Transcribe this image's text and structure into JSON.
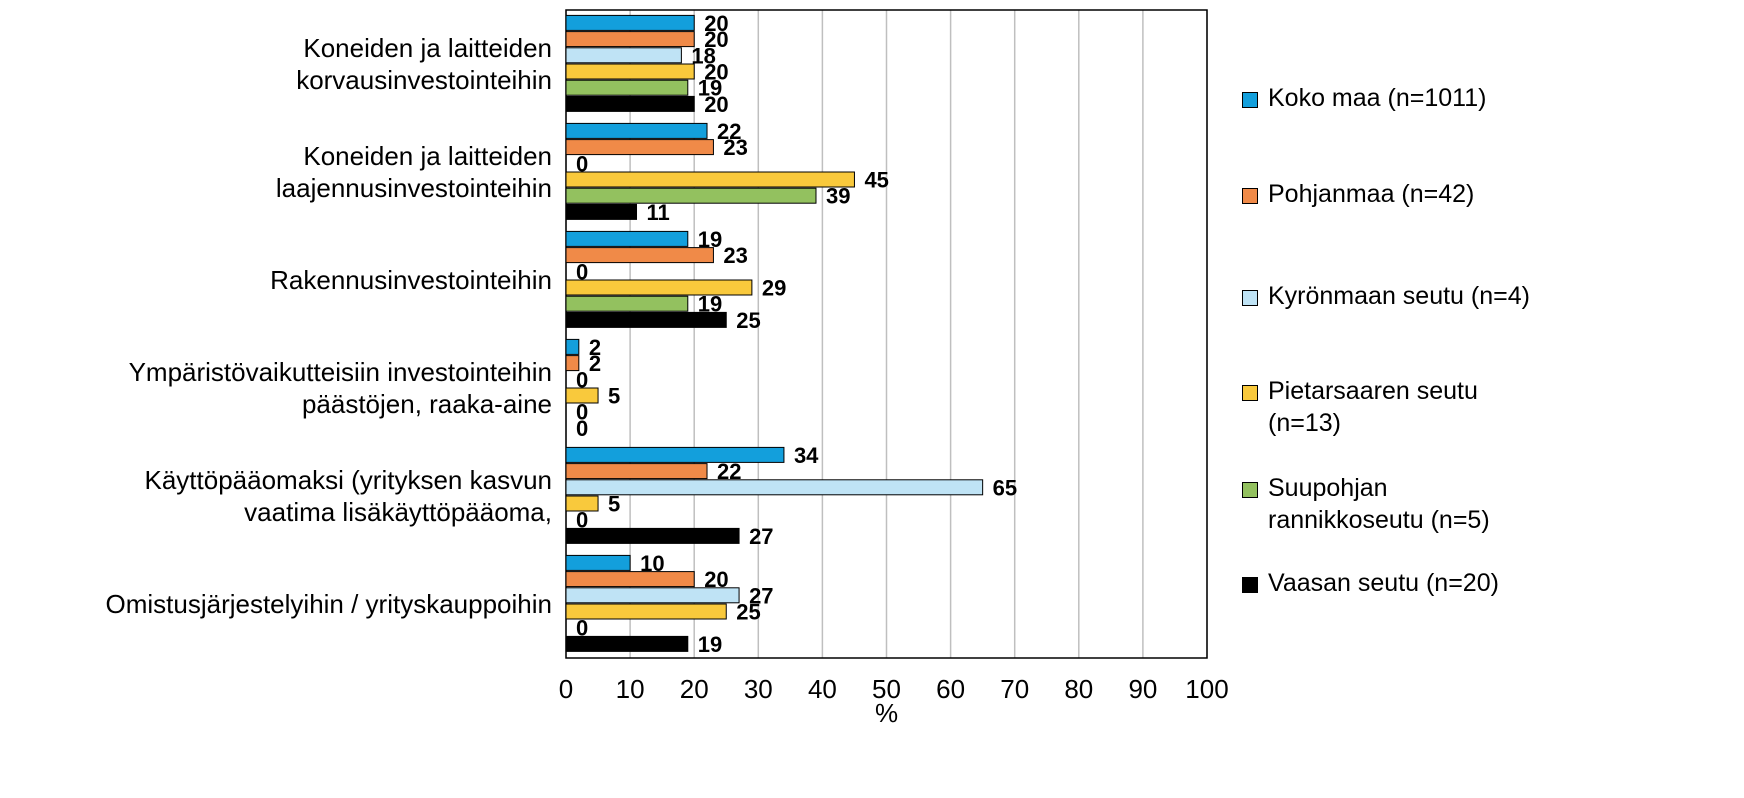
{
  "chart_data": {
    "type": "bar",
    "orientation": "horizontal",
    "categories": [
      "Koneiden ja laitteiden\nkorvausinvestointeihin",
      "Koneiden ja laitteiden\nlaajennusinvestointeihin",
      "Rakennusinvestointeihin",
      "Ympäristövaikutteisiin investointeihin\npäästöjen, raaka-aine",
      "Käyttöpääomaksi (yrityksen kasvun\nvaatima lisäkäyttöpääoma,",
      "Omistusjärjestelyihin / yrityskauppoihin"
    ],
    "series": [
      {
        "name": "Koko maa (n=1011)",
        "color": "#139fdc",
        "values": [
          20,
          22,
          19,
          2,
          34,
          10
        ]
      },
      {
        "name": "Pohjanmaa (n=42)",
        "color": "#f08a48",
        "values": [
          20,
          23,
          23,
          2,
          22,
          20
        ]
      },
      {
        "name": "Kyrönmaan seutu (n=4)",
        "color": "#bfe3f5",
        "values": [
          18,
          0,
          0,
          0,
          65,
          27
        ]
      },
      {
        "name": "Pietarsaaren seutu (n=13)",
        "color": "#f9c93c",
        "values": [
          20,
          45,
          29,
          5,
          5,
          25
        ]
      },
      {
        "name": "Suupohjan rannikkoseutu (n=5)",
        "color": "#93c15f",
        "values": [
          19,
          39,
          19,
          0,
          0,
          0
        ]
      },
      {
        "name": "Vaasan seutu (n=20)",
        "color": "#000000",
        "values": [
          20,
          11,
          25,
          0,
          27,
          19
        ]
      }
    ],
    "x_label": "%",
    "xlim": [
      0,
      100
    ],
    "xticks": [
      0,
      10,
      20,
      30,
      40,
      50,
      60,
      70,
      80,
      90,
      100
    ],
    "grid": true,
    "legend": "right"
  }
}
